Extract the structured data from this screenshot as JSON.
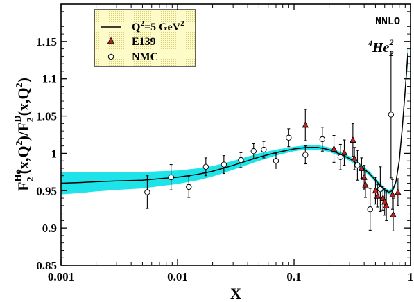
{
  "chart_data": {
    "type": "scatter",
    "title": "",
    "xlabel": "X",
    "xscale": "log",
    "xlim": [
      0.001,
      1
    ],
    "ylim": [
      0.85,
      1.2
    ],
    "x_ticks": [
      0.001,
      0.01,
      0.1,
      1
    ],
    "x_tick_labels": [
      "0.001",
      "0.01",
      "0.1",
      "1"
    ],
    "y_ticks": [
      0.85,
      0.9,
      0.95,
      1.0,
      1.05,
      1.1,
      1.15
    ],
    "y_tick_labels": [
      "0.85",
      "0.9",
      "0.95",
      "1",
      "1.05",
      "1.1",
      "1.15"
    ],
    "grid": false,
    "legend_position": "top-left",
    "annotations": {
      "order": "NNLO",
      "nucleus_mass": "4",
      "nucleus_symbol": "He",
      "nucleus_sub": "2",
      "nucleus_sup": "2"
    },
    "colors": {
      "band": "#1ee3e8",
      "curve": "#000000",
      "triangle": "#c02020",
      "legend_box": "#fdfbc8"
    },
    "series": [
      {
        "name": "Q²=5 GeV²",
        "label_parts": [
          "Q",
          "2",
          "=5 GeV",
          "2"
        ],
        "kind": "curve",
        "x": [
          0.001,
          0.0015,
          0.002,
          0.003,
          0.005,
          0.007,
          0.01,
          0.015,
          0.02,
          0.03,
          0.05,
          0.07,
          0.1,
          0.13,
          0.16,
          0.2,
          0.25,
          0.3,
          0.35,
          0.4,
          0.45,
          0.5,
          0.55,
          0.6,
          0.65,
          0.7,
          0.75,
          0.8,
          0.85,
          0.9,
          0.95
        ],
        "y": [
          0.96,
          0.961,
          0.962,
          0.963,
          0.964,
          0.966,
          0.968,
          0.972,
          0.976,
          0.984,
          0.995,
          1.001,
          1.006,
          1.008,
          1.008,
          1.005,
          0.999,
          0.993,
          0.986,
          0.979,
          0.972,
          0.964,
          0.957,
          0.951,
          0.948,
          0.95,
          0.962,
          0.99,
          1.035,
          1.085,
          1.135
        ],
        "band_halfwidth": [
          0.015,
          0.014,
          0.013,
          0.012,
          0.011,
          0.01,
          0.009,
          0.008,
          0.007,
          0.006,
          0.005,
          0.004,
          0.003,
          0.003,
          0.003,
          0.003,
          0.003,
          0.003,
          0.003,
          0.003,
          0.003,
          0.003,
          0.003,
          0.003,
          0.003,
          0.003,
          0.003,
          0.004,
          0.005,
          0.007,
          0.012
        ]
      },
      {
        "name": "E139",
        "kind": "triangle",
        "points": [
          {
            "x": 0.125,
            "y": 1.038,
            "err": 0.021
          },
          {
            "x": 0.22,
            "y": 1.006,
            "err": 0.018
          },
          {
            "x": 0.27,
            "y": 1.001,
            "err": 0.017
          },
          {
            "x": 0.32,
            "y": 1.018,
            "err": 0.022
          },
          {
            "x": 0.33,
            "y": 0.993,
            "err": 0.015
          },
          {
            "x": 0.38,
            "y": 0.98,
            "err": 0.014
          },
          {
            "x": 0.4,
            "y": 0.968,
            "err": 0.016
          },
          {
            "x": 0.41,
            "y": 0.958,
            "err": 0.017
          },
          {
            "x": 0.5,
            "y": 0.95,
            "err": 0.018
          },
          {
            "x": 0.52,
            "y": 0.943,
            "err": 0.015
          },
          {
            "x": 0.58,
            "y": 0.94,
            "err": 0.016
          },
          {
            "x": 0.6,
            "y": 0.935,
            "err": 0.018
          },
          {
            "x": 0.62,
            "y": 0.93,
            "err": 0.02
          },
          {
            "x": 0.7,
            "y": 0.945,
            "err": 0.02
          },
          {
            "x": 0.71,
            "y": 0.918,
            "err": 0.022
          },
          {
            "x": 0.78,
            "y": 0.948,
            "err": 0.018
          }
        ]
      },
      {
        "name": "NMC",
        "kind": "circle",
        "points": [
          {
            "x": 0.0055,
            "y": 0.948,
            "err": 0.022
          },
          {
            "x": 0.0088,
            "y": 0.968,
            "err": 0.017
          },
          {
            "x": 0.0125,
            "y": 0.955,
            "err": 0.014
          },
          {
            "x": 0.0175,
            "y": 0.982,
            "err": 0.012
          },
          {
            "x": 0.025,
            "y": 0.985,
            "err": 0.012
          },
          {
            "x": 0.035,
            "y": 0.991,
            "err": 0.01
          },
          {
            "x": 0.045,
            "y": 1.003,
            "err": 0.01
          },
          {
            "x": 0.055,
            "y": 1.005,
            "err": 0.011
          },
          {
            "x": 0.07,
            "y": 0.99,
            "err": 0.01
          },
          {
            "x": 0.09,
            "y": 1.021,
            "err": 0.012
          },
          {
            "x": 0.125,
            "y": 0.998,
            "err": 0.012
          },
          {
            "x": 0.175,
            "y": 1.019,
            "err": 0.016
          },
          {
            "x": 0.25,
            "y": 0.995,
            "err": 0.017
          },
          {
            "x": 0.35,
            "y": 0.984,
            "err": 0.02
          },
          {
            "x": 0.45,
            "y": 0.925,
            "err": 0.028
          },
          {
            "x": 0.55,
            "y": 0.952,
            "err": 0.03
          },
          {
            "x": 0.68,
            "y": 1.052,
            "err": 0.085
          }
        ]
      }
    ]
  }
}
